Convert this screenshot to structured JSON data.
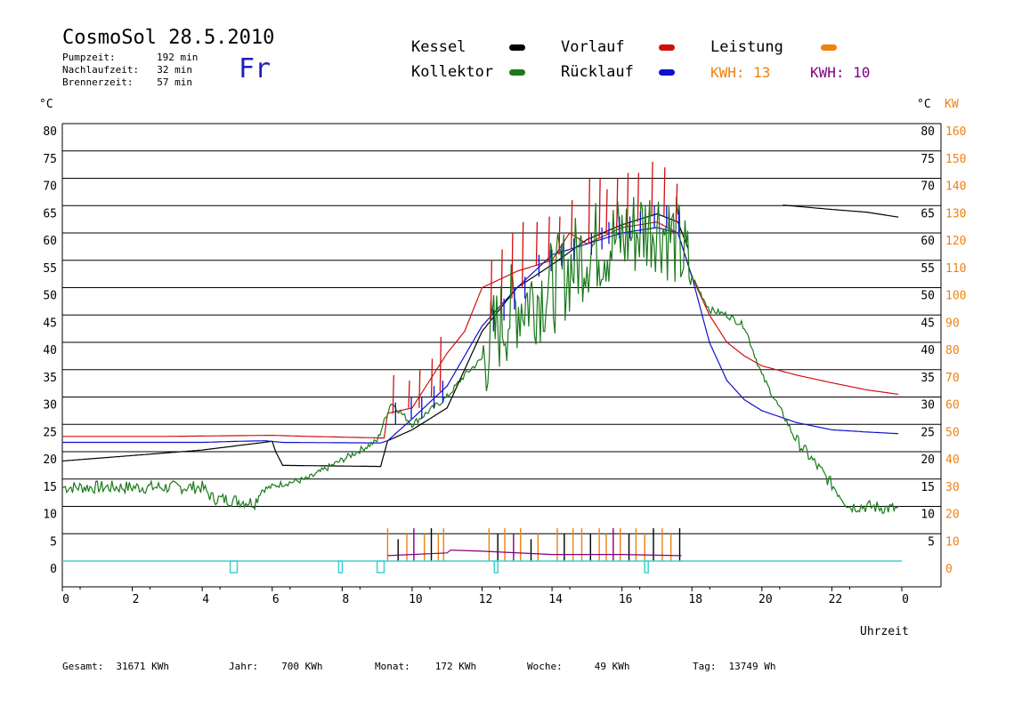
{
  "header": {
    "title": "CosmoSol 28.5.2010",
    "day": "Fr",
    "pumpzeit_label": "Pumpzeit:",
    "pumpzeit_value": "192 min",
    "nachlaufzeit_label": "Nachlaufzeit:",
    "nachlaufzeit_value": "32 min",
    "brennerzeit_label": "Brennerzeit:",
    "brennerzeit_value": "57 min"
  },
  "legend": {
    "kessel": "Kessel",
    "kollektor": "Kollektor",
    "vorlauf": "Vorlauf",
    "ruecklauf": "Rücklauf",
    "leistung": "Leistung",
    "kwh1": "KWH: 13",
    "kwh2": "KWH: 10"
  },
  "colors": {
    "kessel": "#000000",
    "kollektor": "#1a7a1a",
    "vorlauf": "#d01010",
    "ruecklauf": "#1010d0",
    "leistung": "#f08010",
    "purple": "#800080",
    "cyan": "#40d0d0"
  },
  "chart_data": {
    "type": "line",
    "xlabel": "Uhrzeit",
    "ylabel_left": "°C",
    "ylabel_right_c": "°C",
    "ylabel_right_kw": "KW",
    "xlim": [
      0,
      24
    ],
    "ylim": [
      0,
      80
    ],
    "x_ticks": [
      "0",
      "2",
      "4",
      "6",
      "8",
      "10",
      "12",
      "14",
      "16",
      "18",
      "20",
      "22",
      "0"
    ],
    "y_ticks_left": [
      "80",
      "75",
      "70",
      "65",
      "60",
      "55",
      "50",
      "45",
      "40",
      "35",
      "30",
      "25",
      "20",
      "15",
      "10",
      "5",
      "0"
    ],
    "y_ticks_right_c": [
      "80",
      "75",
      "70",
      "65",
      "60",
      "55",
      "50",
      "45",
      "40",
      "35",
      "30",
      "25",
      "20",
      "15",
      "10",
      "5"
    ],
    "y_ticks_right_kw": [
      "160",
      "150",
      "140",
      "130",
      "120",
      "110",
      "100",
      "90",
      "80",
      "70",
      "60",
      "50",
      "40",
      "30",
      "20",
      "10",
      "0"
    ],
    "series": [
      {
        "name": "Kessel",
        "color": "#000000",
        "points": [
          [
            0,
            18.3
          ],
          [
            4,
            20.3
          ],
          [
            5,
            21.1
          ],
          [
            6,
            21.9
          ],
          [
            6.1,
            20
          ],
          [
            6.3,
            17.5
          ],
          [
            9.1,
            17.3
          ],
          [
            9.3,
            22
          ],
          [
            10,
            24
          ],
          [
            11,
            28
          ],
          [
            12,
            42
          ],
          [
            13,
            50
          ],
          [
            14,
            54.2
          ],
          [
            15,
            58.8
          ],
          [
            16,
            61.5
          ],
          [
            17,
            63.5
          ],
          [
            17.6,
            62
          ],
          [
            17.9,
            57
          ],
          [
            null,
            null
          ],
          [
            20.6,
            65.1
          ],
          [
            22,
            64.3
          ],
          [
            23,
            63.8
          ],
          [
            23.9,
            62.9
          ]
        ]
      },
      {
        "name": "Vorlauf",
        "color": "#d01010",
        "points": [
          [
            0,
            22.8
          ],
          [
            3,
            22.8
          ],
          [
            6,
            23
          ],
          [
            7,
            22.8
          ],
          [
            9.2,
            22.5
          ],
          [
            9.3,
            27
          ],
          [
            10,
            28
          ],
          [
            11,
            38
          ],
          [
            11.5,
            42
          ],
          [
            12,
            50
          ],
          [
            13,
            53
          ],
          [
            14,
            55
          ],
          [
            14.5,
            60
          ],
          [
            15,
            58
          ],
          [
            16,
            61
          ],
          [
            17,
            62
          ],
          [
            17.6,
            60
          ],
          [
            18,
            52
          ],
          [
            18.5,
            45
          ],
          [
            19,
            40
          ],
          [
            19.5,
            37.5
          ],
          [
            20,
            35.7
          ],
          [
            21,
            34
          ],
          [
            22,
            32.6
          ],
          [
            23,
            31.3
          ],
          [
            23.9,
            30.5
          ]
        ]
      },
      {
        "name": "Rücklauf",
        "color": "#1010d0",
        "points": [
          [
            0,
            21.7
          ],
          [
            4,
            21.7
          ],
          [
            5,
            21.9
          ],
          [
            5.8,
            22
          ],
          [
            6.3,
            21.7
          ],
          [
            9.1,
            21.6
          ],
          [
            9.3,
            22
          ],
          [
            10,
            26
          ],
          [
            11,
            32
          ],
          [
            12,
            43
          ],
          [
            13,
            50
          ],
          [
            14,
            56
          ],
          [
            15,
            58
          ],
          [
            16,
            60
          ],
          [
            17,
            61
          ],
          [
            17.6,
            60
          ],
          [
            18,
            52
          ],
          [
            18.5,
            40
          ],
          [
            19,
            33
          ],
          [
            19.5,
            29.5
          ],
          [
            20,
            27.5
          ],
          [
            21,
            25.3
          ],
          [
            22,
            24
          ],
          [
            23,
            23.6
          ],
          [
            23.9,
            23.3
          ]
        ]
      },
      {
        "name": "Kollektor",
        "color": "#1a7a1a",
        "points": [
          [
            0,
            13.5
          ],
          [
            2,
            13.5
          ],
          [
            4,
            13.5
          ],
          [
            4.3,
            11.5
          ],
          [
            5.5,
            10.7
          ],
          [
            5.7,
            13
          ],
          [
            6.2,
            14
          ],
          [
            7,
            15
          ],
          [
            8,
            18.5
          ],
          [
            9,
            22
          ],
          [
            9.4,
            29
          ],
          [
            10,
            25
          ],
          [
            11,
            30
          ],
          [
            11.5,
            34
          ],
          [
            12,
            37
          ],
          [
            12.5,
            43
          ],
          [
            13,
            47
          ],
          [
            14,
            50
          ],
          [
            15,
            57
          ],
          [
            16,
            59
          ],
          [
            17,
            62
          ],
          [
            17.6,
            58
          ],
          [
            18,
            52
          ],
          [
            18.5,
            46
          ],
          [
            19,
            45
          ],
          [
            19.5,
            43
          ],
          [
            20,
            34
          ],
          [
            20.5,
            28
          ],
          [
            21,
            22
          ],
          [
            22,
            14
          ],
          [
            22.5,
            10
          ],
          [
            23,
            10
          ],
          [
            23.9,
            9.5
          ]
        ]
      }
    ],
    "spike_pairs": [
      [
        9.45,
        34,
        27
      ],
      [
        9.9,
        33,
        28
      ],
      [
        10.2,
        35,
        28
      ],
      [
        10.55,
        37,
        30
      ],
      [
        10.8,
        41,
        31
      ],
      [
        12.25,
        55,
        44
      ],
      [
        12.55,
        57,
        46
      ],
      [
        12.85,
        60,
        48
      ],
      [
        13.15,
        62,
        50
      ],
      [
        13.55,
        62,
        54
      ],
      [
        13.9,
        63,
        55
      ],
      [
        14.2,
        63,
        56
      ],
      [
        14.55,
        66,
        57
      ],
      [
        15.05,
        70,
        58
      ],
      [
        15.35,
        70,
        59
      ],
      [
        15.55,
        68,
        60
      ],
      [
        15.85,
        70,
        61
      ],
      [
        16.15,
        71,
        61
      ],
      [
        16.45,
        71,
        62
      ],
      [
        16.85,
        73,
        63
      ],
      [
        17.2,
        72,
        63
      ],
      [
        17.55,
        69,
        62
      ]
    ],
    "bars": [
      [
        9.3,
        6,
        "#f08010"
      ],
      [
        9.6,
        4,
        "#000000"
      ],
      [
        9.85,
        5,
        "#f08010"
      ],
      [
        10.05,
        6,
        "#800080"
      ],
      [
        10.35,
        5,
        "#f08010"
      ],
      [
        10.55,
        6,
        "#000000"
      ],
      [
        10.75,
        5,
        "#f08010"
      ],
      [
        10.9,
        6,
        "#f08010"
      ],
      [
        12.2,
        6,
        "#f08010"
      ],
      [
        12.45,
        5,
        "#000000"
      ],
      [
        12.65,
        6,
        "#f08010"
      ],
      [
        12.9,
        5,
        "#800080"
      ],
      [
        13.1,
        6,
        "#f08010"
      ],
      [
        13.4,
        4,
        "#000000"
      ],
      [
        13.6,
        5,
        "#f08010"
      ],
      [
        14.15,
        6,
        "#f08010"
      ],
      [
        14.35,
        5,
        "#000000"
      ],
      [
        14.6,
        6,
        "#f08010"
      ],
      [
        14.85,
        6,
        "#f08010"
      ],
      [
        15.1,
        5,
        "#000000"
      ],
      [
        15.35,
        6,
        "#f08010"
      ],
      [
        15.55,
        5,
        "#f08010"
      ],
      [
        15.75,
        6,
        "#800080"
      ],
      [
        15.95,
        6,
        "#f08010"
      ],
      [
        16.2,
        5,
        "#000000"
      ],
      [
        16.4,
        6,
        "#f08010"
      ],
      [
        16.65,
        5,
        "#f08010"
      ],
      [
        16.9,
        6,
        "#000000"
      ],
      [
        17.15,
        6,
        "#f08010"
      ],
      [
        17.4,
        5,
        "#f08010"
      ],
      [
        17.65,
        6,
        "#000000"
      ]
    ],
    "base_purple": [
      [
        9.3,
        1
      ],
      [
        11,
        1.5
      ],
      [
        11.1,
        2
      ],
      [
        12,
        1.8
      ],
      [
        14,
        1.2
      ],
      [
        16,
        1.2
      ],
      [
        17.7,
        1
      ]
    ],
    "pulses": [
      [
        4.8,
        5.0
      ],
      [
        7.9,
        8.0
      ],
      [
        9.0,
        9.2
      ],
      [
        12.35,
        12.45
      ],
      [
        16.65,
        16.75
      ]
    ]
  },
  "footer": {
    "gesamt_label": "Gesamt:",
    "gesamt_value": "31671 KWh",
    "jahr_label": "Jahr:",
    "jahr_value": "700 KWh",
    "monat_label": "Monat:",
    "monat_value": "172 KWh",
    "woche_label": "Woche:",
    "woche_value": "49 KWh",
    "tag_label": "Tag:",
    "tag_value": "13749 Wh"
  }
}
